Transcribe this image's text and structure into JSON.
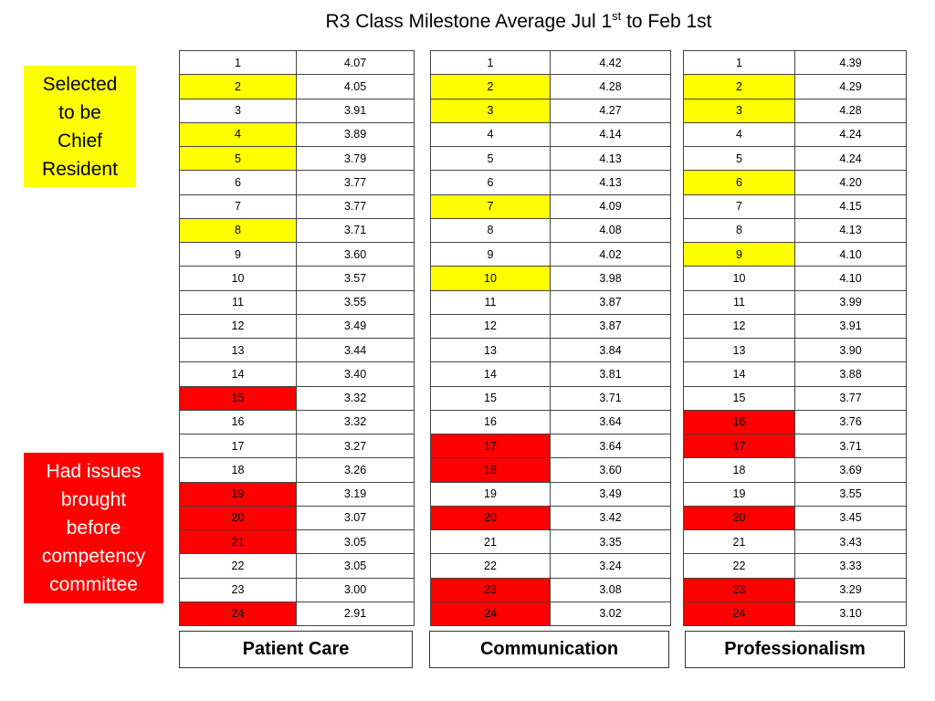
{
  "title": {
    "prefix": "R3 Class Milestone Average  Jul 1",
    "sup1": "st",
    "middle": " to Feb 1st"
  },
  "colors": {
    "selected": "#ffff00",
    "issues": "#ff0000",
    "border": "#444444"
  },
  "legend": {
    "chief": {
      "lines": [
        "Selected",
        "to be",
        "Chief",
        "Resident"
      ],
      "color": "#ffff00"
    },
    "issues": {
      "lines": [
        "Had issues",
        "brought",
        "before",
        "competency",
        "committee"
      ],
      "color": "#ff0000"
    }
  },
  "tables": [
    {
      "category": "Patient Care",
      "rows": [
        {
          "rank": "1",
          "value": "4.07",
          "mark": ""
        },
        {
          "rank": "2",
          "value": "4.05",
          "mark": "yellow"
        },
        {
          "rank": "3",
          "value": "3.91",
          "mark": ""
        },
        {
          "rank": "4",
          "value": "3.89",
          "mark": "yellow"
        },
        {
          "rank": "5",
          "value": "3.79",
          "mark": "yellow"
        },
        {
          "rank": "6",
          "value": "3.77",
          "mark": ""
        },
        {
          "rank": "7",
          "value": "3.77",
          "mark": ""
        },
        {
          "rank": "8",
          "value": "3.71",
          "mark": "yellow"
        },
        {
          "rank": "9",
          "value": "3.60",
          "mark": ""
        },
        {
          "rank": "10",
          "value": "3.57",
          "mark": ""
        },
        {
          "rank": "11",
          "value": "3.55",
          "mark": ""
        },
        {
          "rank": "12",
          "value": "3.49",
          "mark": ""
        },
        {
          "rank": "13",
          "value": "3.44",
          "mark": ""
        },
        {
          "rank": "14",
          "value": "3.40",
          "mark": ""
        },
        {
          "rank": "15",
          "value": "3.32",
          "mark": "red"
        },
        {
          "rank": "16",
          "value": "3.32",
          "mark": ""
        },
        {
          "rank": "17",
          "value": "3.27",
          "mark": ""
        },
        {
          "rank": "18",
          "value": "3.26",
          "mark": ""
        },
        {
          "rank": "19",
          "value": "3.19",
          "mark": "red"
        },
        {
          "rank": "20",
          "value": "3.07",
          "mark": "red"
        },
        {
          "rank": "21",
          "value": "3.05",
          "mark": "red"
        },
        {
          "rank": "22",
          "value": "3.05",
          "mark": ""
        },
        {
          "rank": "23",
          "value": "3.00",
          "mark": ""
        },
        {
          "rank": "24",
          "value": "2.91",
          "mark": "red"
        }
      ]
    },
    {
      "category": "Communication",
      "rows": [
        {
          "rank": "1",
          "value": "4.42",
          "mark": ""
        },
        {
          "rank": "2",
          "value": "4.28",
          "mark": "yellow"
        },
        {
          "rank": "3",
          "value": "4.27",
          "mark": "yellow"
        },
        {
          "rank": "4",
          "value": "4.14",
          "mark": ""
        },
        {
          "rank": "5",
          "value": "4.13",
          "mark": ""
        },
        {
          "rank": "6",
          "value": "4.13",
          "mark": ""
        },
        {
          "rank": "7",
          "value": "4.09",
          "mark": "yellow"
        },
        {
          "rank": "8",
          "value": "4.08",
          "mark": ""
        },
        {
          "rank": "9",
          "value": "4.02",
          "mark": ""
        },
        {
          "rank": "10",
          "value": "3.98",
          "mark": "yellow"
        },
        {
          "rank": "11",
          "value": "3.87",
          "mark": ""
        },
        {
          "rank": "12",
          "value": "3.87",
          "mark": ""
        },
        {
          "rank": "13",
          "value": "3.84",
          "mark": ""
        },
        {
          "rank": "14",
          "value": "3.81",
          "mark": ""
        },
        {
          "rank": "15",
          "value": "3.71",
          "mark": ""
        },
        {
          "rank": "16",
          "value": "3.64",
          "mark": ""
        },
        {
          "rank": "17",
          "value": "3.64",
          "mark": "red"
        },
        {
          "rank": "18",
          "value": "3.60",
          "mark": "red"
        },
        {
          "rank": "19",
          "value": "3.49",
          "mark": ""
        },
        {
          "rank": "20",
          "value": "3.42",
          "mark": "red"
        },
        {
          "rank": "21",
          "value": "3.35",
          "mark": ""
        },
        {
          "rank": "22",
          "value": "3.24",
          "mark": ""
        },
        {
          "rank": "23",
          "value": "3.08",
          "mark": "red"
        },
        {
          "rank": "24",
          "value": "3.02",
          "mark": "red"
        }
      ]
    },
    {
      "category": "Professionalism",
      "rows": [
        {
          "rank": "1",
          "value": "4.39",
          "mark": ""
        },
        {
          "rank": "2",
          "value": "4.29",
          "mark": "yellow"
        },
        {
          "rank": "3",
          "value": "4.28",
          "mark": "yellow"
        },
        {
          "rank": "4",
          "value": "4.24",
          "mark": ""
        },
        {
          "rank": "5",
          "value": "4.24",
          "mark": ""
        },
        {
          "rank": "6",
          "value": "4.20",
          "mark": "yellow"
        },
        {
          "rank": "7",
          "value": "4.15",
          "mark": ""
        },
        {
          "rank": "8",
          "value": "4.13",
          "mark": ""
        },
        {
          "rank": "9",
          "value": "4.10",
          "mark": "yellow"
        },
        {
          "rank": "10",
          "value": "4.10",
          "mark": ""
        },
        {
          "rank": "11",
          "value": "3.99",
          "mark": ""
        },
        {
          "rank": "12",
          "value": "3.91",
          "mark": ""
        },
        {
          "rank": "13",
          "value": "3.90",
          "mark": ""
        },
        {
          "rank": "14",
          "value": "3.88",
          "mark": ""
        },
        {
          "rank": "15",
          "value": "3.77",
          "mark": ""
        },
        {
          "rank": "16",
          "value": "3.76",
          "mark": "red"
        },
        {
          "rank": "17",
          "value": "3.71",
          "mark": "red"
        },
        {
          "rank": "18",
          "value": "3.69",
          "mark": ""
        },
        {
          "rank": "19",
          "value": "3.55",
          "mark": ""
        },
        {
          "rank": "20",
          "value": "3.45",
          "mark": "red"
        },
        {
          "rank": "21",
          "value": "3.43",
          "mark": ""
        },
        {
          "rank": "22",
          "value": "3.33",
          "mark": ""
        },
        {
          "rank": "23",
          "value": "3.29",
          "mark": "red"
        },
        {
          "rank": "24",
          "value": "3.10",
          "mark": "red"
        }
      ]
    }
  ]
}
